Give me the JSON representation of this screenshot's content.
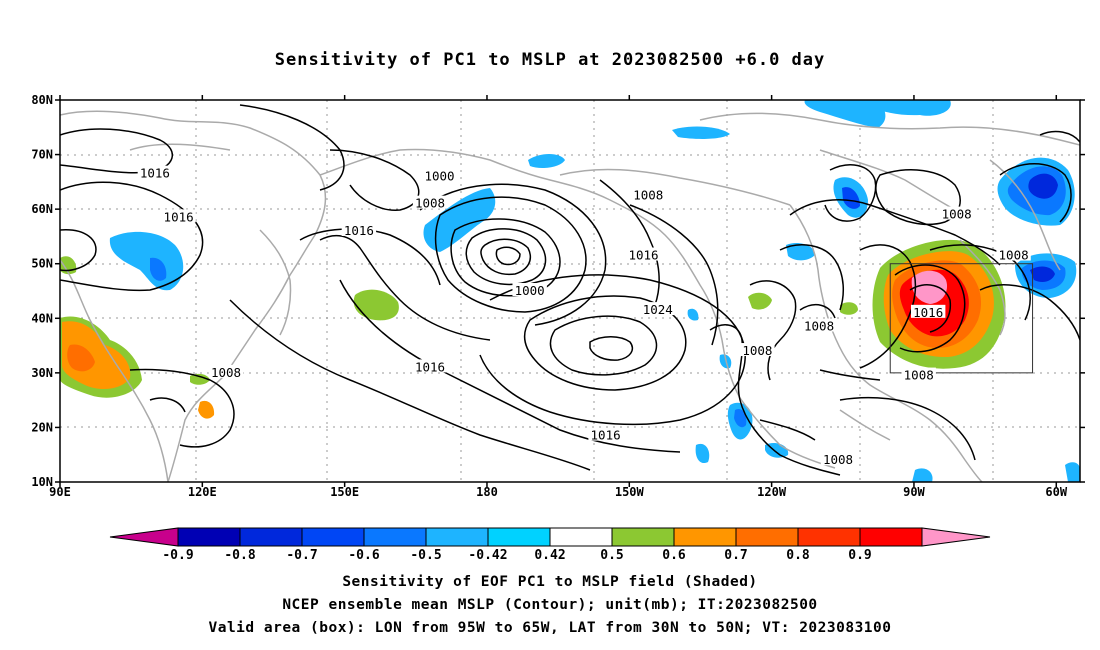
{
  "title": "Sensitivity of PC1 to MSLP at 2023082500 +6.0 day",
  "axes": {
    "lat_labels": [
      "80N",
      "70N",
      "60N",
      "50N",
      "40N",
      "30N",
      "20N",
      "10N"
    ],
    "lon_labels": [
      "90E",
      "120E",
      "150E",
      "180",
      "150W",
      "120W",
      "90W",
      "60W"
    ]
  },
  "contour_labels": [
    {
      "text": "1016",
      "lon": 110,
      "lat": 66.5
    },
    {
      "text": "1016",
      "lon": 115,
      "lat": 58.5
    },
    {
      "text": "1000",
      "lon": 170,
      "lat": 66
    },
    {
      "text": "1008",
      "lon": 168,
      "lat": 61
    },
    {
      "text": "1016",
      "lon": 153,
      "lat": 56
    },
    {
      "text": "1008",
      "lon": 214,
      "lat": 62.5
    },
    {
      "text": "1016",
      "lon": 213,
      "lat": 51.5
    },
    {
      "text": "1000",
      "lon": 189,
      "lat": 45
    },
    {
      "text": "1024",
      "lon": 216,
      "lat": 41.5
    },
    {
      "text": "1016",
      "lon": 168,
      "lat": 31
    },
    {
      "text": "1008",
      "lon": 125,
      "lat": 30
    },
    {
      "text": "1016",
      "lon": 205,
      "lat": 18.5
    },
    {
      "text": "1008",
      "lon": 237,
      "lat": 34
    },
    {
      "text": "1008",
      "lon": 250,
      "lat": 38.5
    },
    {
      "text": "1016",
      "lon": 273,
      "lat": 41
    },
    {
      "text": "1008",
      "lon": 271,
      "lat": 29.5
    },
    {
      "text": "1008",
      "lon": 279,
      "lat": 59
    },
    {
      "text": "1008",
      "lon": 291,
      "lat": 51.5
    },
    {
      "text": "1008",
      "lon": 254,
      "lat": 14
    }
  ],
  "colorbar": {
    "labels": [
      "-0.9",
      "-0.8",
      "-0.7",
      "-0.6",
      "-0.5",
      "-0.42",
      "0.42",
      "0.5",
      "0.6",
      "0.7",
      "0.8",
      "0.9"
    ],
    "colors": [
      "#c8008c",
      "#0000b4",
      "#0028dc",
      "#0046f5",
      "#0a78ff",
      "#1eb4ff",
      "#00d2ff",
      "#ffffff",
      "#8cc832",
      "#ff9600",
      "#ff6e00",
      "#ff3200",
      "#ff0000",
      "#ff96c8"
    ]
  },
  "valid_box": {
    "lon_min": 265,
    "lon_max": 295,
    "lat_min": 30,
    "lat_max": 50
  },
  "captions": [
    "Sensitivity of EOF PC1 to MSLP field (Shaded)",
    "NCEP ensemble mean MSLP (Contour); unit(mb); IT:2023082500",
    "Valid area (box): LON from 95W to 65W, LAT from 30N to 50N; VT: 2023083100"
  ]
}
